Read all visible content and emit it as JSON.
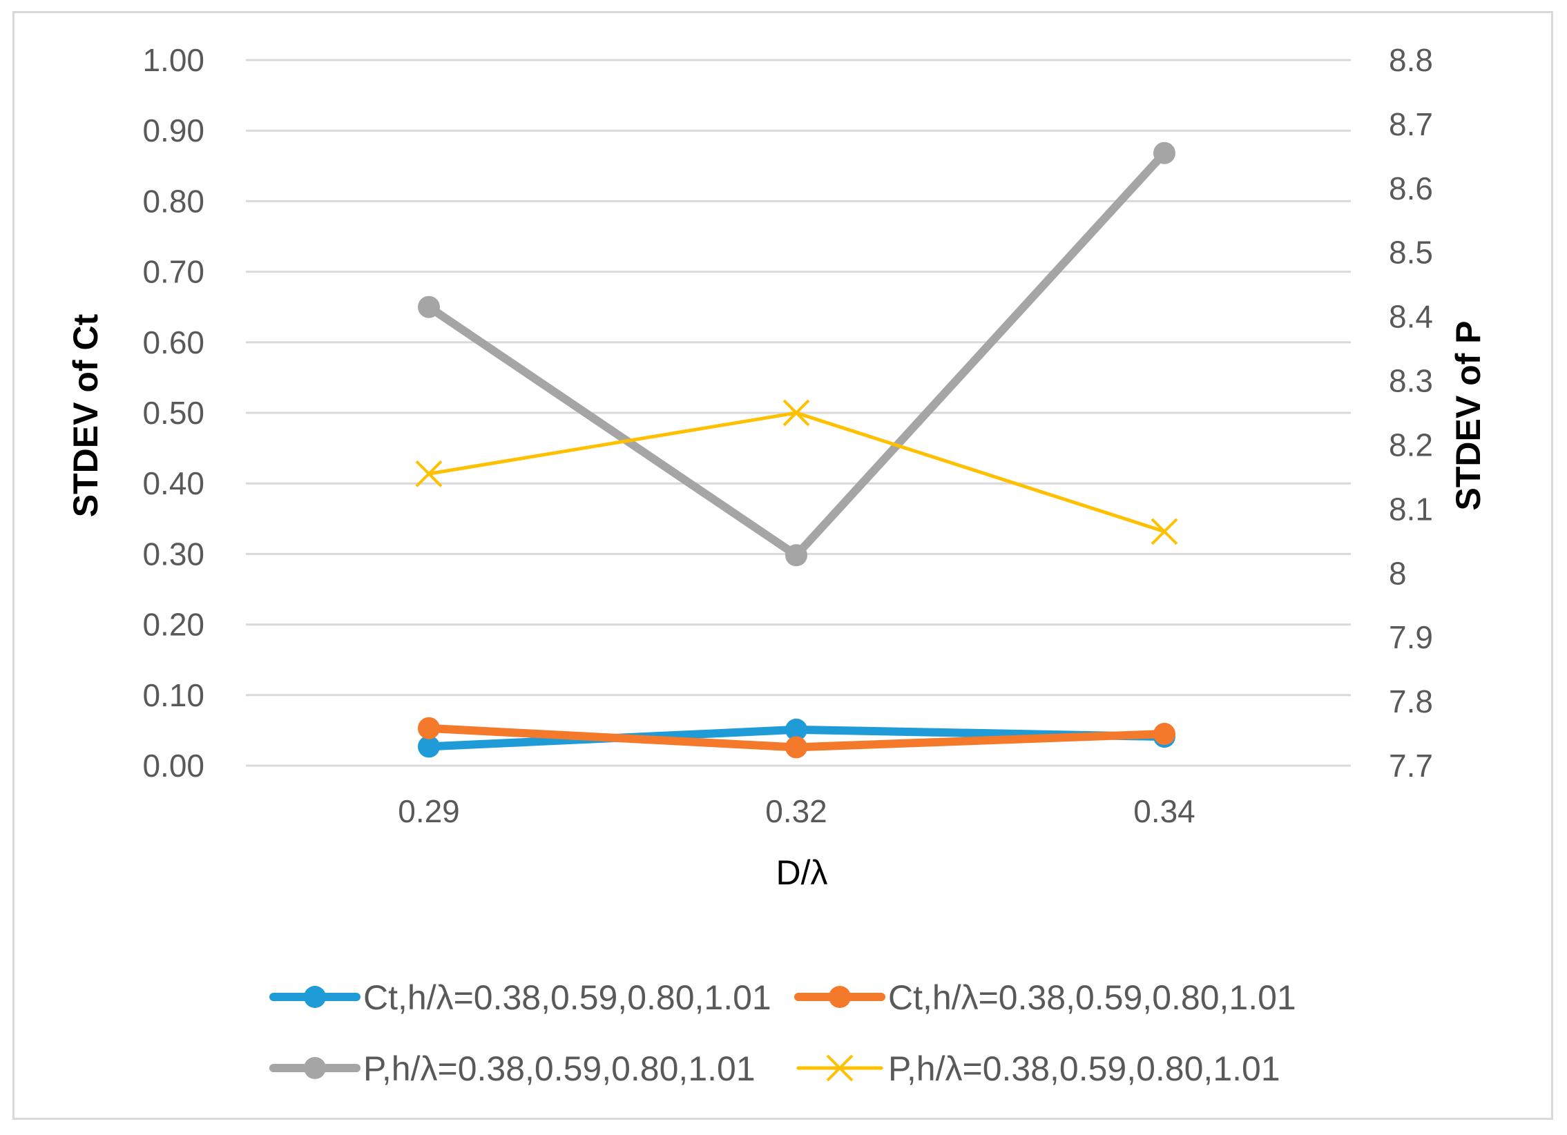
{
  "chart_data": {
    "type": "line",
    "xlabel": "D/λ",
    "ylabel": "STDEV of Ct",
    "y2label": "STDEV of P",
    "categories": [
      "0.29",
      "0.32",
      "0.34"
    ],
    "ylim": [
      0,
      1
    ],
    "y2lim": [
      7.7,
      8.8
    ],
    "y_ticks": [
      "0.00",
      "0.10",
      "0.20",
      "0.30",
      "0.40",
      "0.50",
      "0.60",
      "0.70",
      "0.80",
      "0.90",
      "1.00"
    ],
    "y2_ticks": [
      "7.7",
      "7.8",
      "7.9",
      "8",
      "8.1",
      "8.2",
      "8.3",
      "8.4",
      "8.5",
      "8.6",
      "8.7",
      "8.8"
    ],
    "grid": true,
    "legend_position": "bottom",
    "series": [
      {
        "name": "Ct,h/λ=0.38,0.59,0.80,1.01",
        "axis": "left",
        "values": [
          0.027,
          0.051,
          0.041
        ],
        "color": "#1f9bd7",
        "marker": "circle",
        "width": "thick"
      },
      {
        "name": "Ct,h/λ=0.38,0.59,0.80,1.01",
        "axis": "left",
        "values": [
          0.053,
          0.026,
          0.045
        ],
        "color": "#f5792a",
        "marker": "circle",
        "width": "thick"
      },
      {
        "name": "P,h/λ=0.38,0.59,0.80,1.01",
        "axis": "right",
        "values": [
          8.415,
          8.028,
          8.655
        ],
        "color": "#a5a5a5",
        "marker": "circle",
        "width": "thick"
      },
      {
        "name": "P,h/λ=0.38,0.59,0.80,1.01",
        "axis": "right",
        "values": [
          8.155,
          8.25,
          8.065
        ],
        "color": "#ffc000",
        "marker": "x",
        "width": "thin"
      }
    ]
  }
}
